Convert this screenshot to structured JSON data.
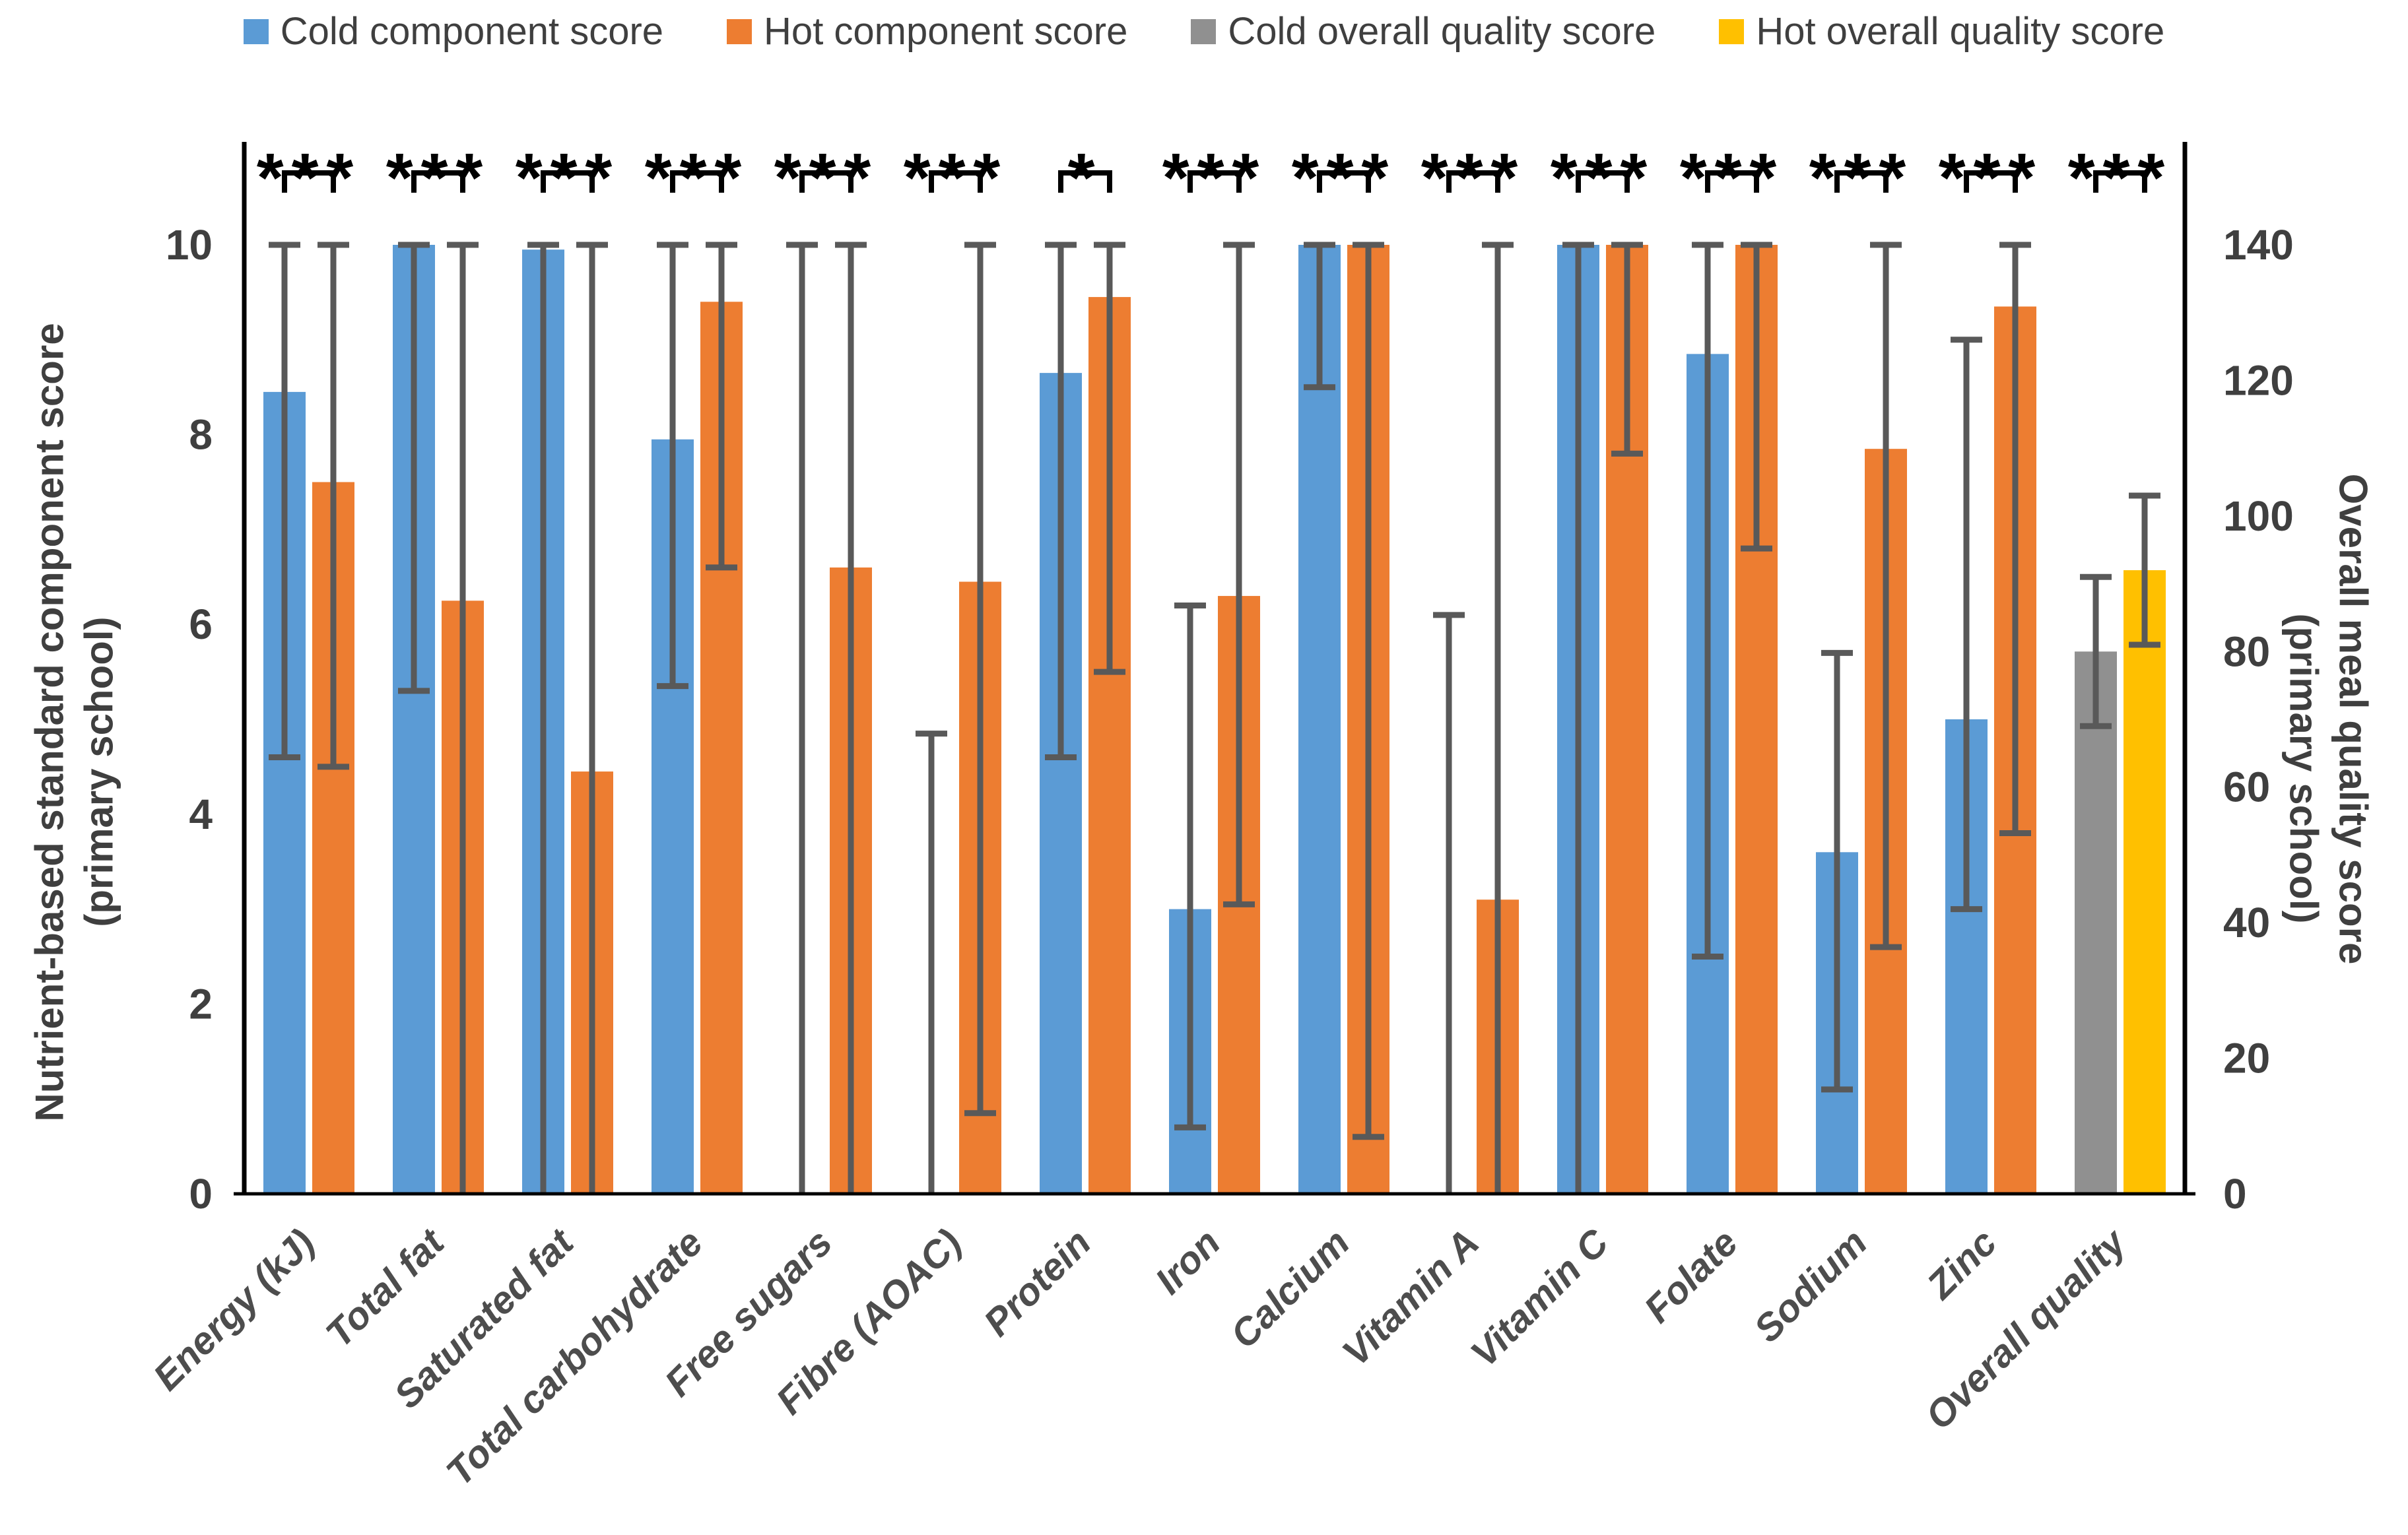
{
  "legend": [
    {
      "label": "Cold component score",
      "color": "#5B9BD5"
    },
    {
      "label": "Hot component score",
      "color": "#ED7D31"
    },
    {
      "label": "Cold overall quality score",
      "color": "#909090"
    },
    {
      "label": "Hot overall quality score",
      "color": "#FFC000"
    }
  ],
  "left_axis": {
    "title_line1": "Nutrient-based standard component score",
    "title_line2": "(primary school)",
    "ticks": [
      0,
      2,
      4,
      6,
      8,
      10
    ],
    "range": [
      0,
      10
    ]
  },
  "right_axis": {
    "title_line1": "Overall meal quality score",
    "title_line2": "(primary school)",
    "ticks": [
      0,
      20,
      40,
      60,
      80,
      100,
      120,
      140
    ],
    "range": [
      0,
      140
    ]
  },
  "chart_data": {
    "type": "bar",
    "title": "",
    "categories": [
      "Energy (kJ)",
      "Total fat",
      "Saturated fat",
      "Total carbohydrate",
      "Free sugars",
      "Fibre (AOAC)",
      "Protein",
      "Iron",
      "Calcium",
      "Vitamin A",
      "Vitamin C",
      "Folate",
      "Sodium",
      "Zinc",
      "Overall quality"
    ],
    "significance": [
      "***",
      "***",
      "***",
      "***",
      "***",
      "***",
      "*",
      "***",
      "***",
      "***",
      "***",
      "***",
      "***",
      "***",
      "***"
    ],
    "grid": false,
    "legend_position": "top",
    "error_bar_color": "#595959",
    "series": [
      {
        "name": "Cold component score",
        "color": "#5B9BD5",
        "axis": "left",
        "values": [
          8.45,
          10,
          9.95,
          7.95,
          0,
          0,
          8.65,
          3.0,
          10,
          0,
          10,
          8.85,
          3.6,
          5.0,
          null
        ],
        "error_low": [
          4.6,
          5.3,
          0,
          5.35,
          0,
          0,
          4.6,
          0.7,
          8.5,
          0,
          0,
          2.5,
          1.1,
          3.0,
          null
        ],
        "error_high": [
          10,
          10,
          10,
          10,
          10,
          4.85,
          10,
          6.2,
          10,
          6.1,
          10,
          10,
          5.7,
          9.0,
          null
        ]
      },
      {
        "name": "Hot component score",
        "color": "#ED7D31",
        "axis": "left",
        "values": [
          7.5,
          6.25,
          4.45,
          9.4,
          6.6,
          6.45,
          9.45,
          6.3,
          10,
          3.1,
          10,
          10,
          7.85,
          9.35,
          null
        ],
        "error_low": [
          4.5,
          0,
          0,
          6.6,
          0,
          0.85,
          5.5,
          3.05,
          0.6,
          0,
          7.8,
          6.8,
          2.6,
          3.8,
          null
        ],
        "error_high": [
          10,
          10,
          10,
          10,
          10,
          10,
          10,
          10,
          10,
          10,
          10,
          10,
          10,
          10,
          null
        ]
      },
      {
        "name": "Cold overall quality score",
        "color": "#909090",
        "axis": "right",
        "values": [
          null,
          null,
          null,
          null,
          null,
          null,
          null,
          null,
          null,
          null,
          null,
          null,
          null,
          null,
          80
        ],
        "error_low": [
          null,
          null,
          null,
          null,
          null,
          null,
          null,
          null,
          null,
          null,
          null,
          null,
          null,
          null,
          69
        ],
        "error_high": [
          null,
          null,
          null,
          null,
          null,
          null,
          null,
          null,
          null,
          null,
          null,
          null,
          null,
          null,
          91
        ]
      },
      {
        "name": "Hot overall quality score",
        "color": "#FFC000",
        "axis": "right",
        "values": [
          null,
          null,
          null,
          null,
          null,
          null,
          null,
          null,
          null,
          null,
          null,
          null,
          null,
          null,
          92
        ],
        "error_low": [
          null,
          null,
          null,
          null,
          null,
          null,
          null,
          null,
          null,
          null,
          null,
          null,
          null,
          null,
          81
        ],
        "error_high": [
          null,
          null,
          null,
          null,
          null,
          null,
          null,
          null,
          null,
          null,
          null,
          null,
          null,
          null,
          103
        ]
      }
    ]
  }
}
